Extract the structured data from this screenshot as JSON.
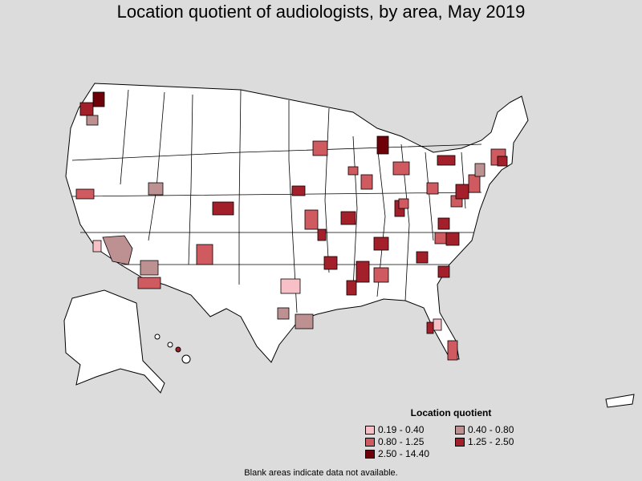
{
  "title": "Location quotient of audiologists, by area, May 2019",
  "legend": {
    "title": "Location quotient",
    "items": [
      {
        "label": "0.19 - 0.40",
        "color": "#f7c0c6"
      },
      {
        "label": "0.40 - 0.80",
        "color": "#bd9192"
      },
      {
        "label": "0.80 - 1.25",
        "color": "#cf5a60"
      },
      {
        "label": "1.25 - 2.50",
        "color": "#a3202a"
      },
      {
        "label": "2.50 - 14.40",
        "color": "#6d0008"
      }
    ]
  },
  "footnote": "Blank areas indicate data not available.",
  "colors": {
    "background": "#dcdcdc",
    "land": "#ffffff",
    "border": "#000000"
  }
}
